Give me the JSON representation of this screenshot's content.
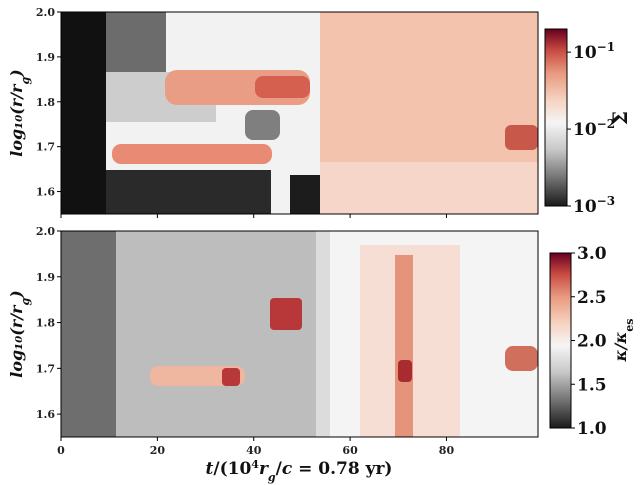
{
  "chart_data": [
    {
      "type": "heatmap",
      "panel": "top",
      "xlabel": "",
      "ylabel": "log10(r/rg)",
      "ylim": [
        1.55,
        2.0
      ],
      "xlim": [
        0,
        99
      ],
      "yticks": [
        "1.6",
        "1.7",
        "1.8",
        "1.9",
        "2.0"
      ],
      "colorbar": {
        "label": "Σ",
        "scale": "log",
        "range": [
          0.001,
          0.2
        ],
        "ticks": [
          "10−3",
          "10−2",
          "10−1"
        ],
        "colormap": [
          "#1a1a1a",
          "#6e6e6e",
          "#c8c8c8",
          "#f5f5f5",
          "#f6d2c0",
          "#e89a80",
          "#c84a42",
          "#67001f"
        ]
      }
    },
    {
      "type": "heatmap",
      "panel": "bottom",
      "xlabel": "t/(10⁴rg/c = 0.78 yr)",
      "ylabel": "log10(r/rg)",
      "ylim": [
        1.55,
        2.0
      ],
      "xlim": [
        0,
        99
      ],
      "xticks": [
        "0",
        "20",
        "40",
        "60",
        "80"
      ],
      "yticks": [
        "1.6",
        "1.7",
        "1.8",
        "1.9",
        "2.0"
      ],
      "colorbar": {
        "label": "κ/κes",
        "scale": "linear",
        "range": [
          1.0,
          3.0
        ],
        "ticks": [
          "1.0",
          "1.5",
          "2.0",
          "2.5",
          "3.0"
        ],
        "colormap": [
          "#1a1a1a",
          "#6e6e6e",
          "#c8c8c8",
          "#f5f5f5",
          "#f6d2c0",
          "#e89a80",
          "#c84a42",
          "#67001f"
        ]
      }
    }
  ]
}
